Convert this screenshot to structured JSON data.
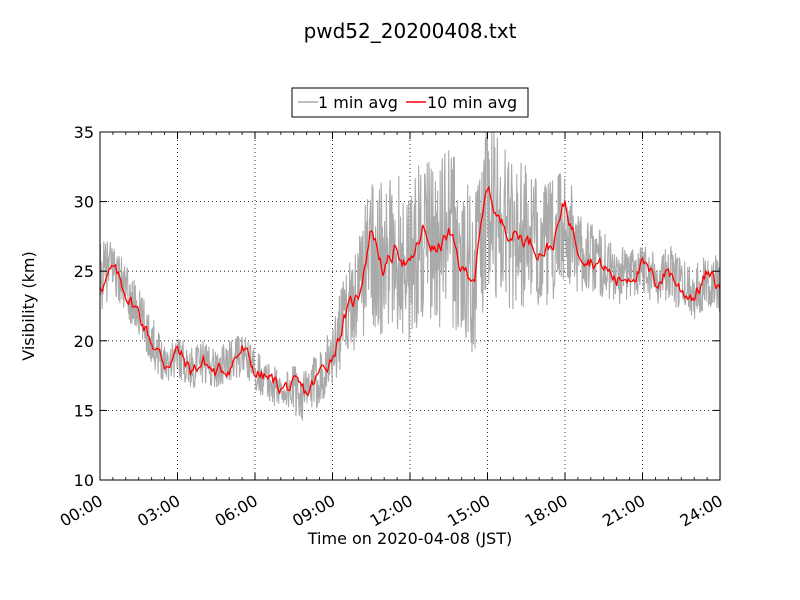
{
  "chart_data": {
    "type": "line",
    "title": "pwd52_20200408.txt",
    "xlabel": "Time on 2020-04-08 (JST)",
    "ylabel": "Visibility (km)",
    "xlim_hours": [
      0,
      24
    ],
    "ylim": [
      10,
      35
    ],
    "x_ticks": [
      "00:00",
      "03:00",
      "06:00",
      "09:00",
      "12:00",
      "15:00",
      "18:00",
      "21:00",
      "24:00"
    ],
    "y_ticks": [
      "10",
      "15",
      "20",
      "25",
      "30",
      "35"
    ],
    "grid": true,
    "legend_position": "top-center",
    "series": [
      {
        "name": "1 min avg",
        "color": "#aaaaaa",
        "x_hours": [
          0,
          0.5,
          1,
          1.5,
          2,
          2.5,
          3,
          3.5,
          4,
          4.5,
          5,
          5.5,
          6,
          6.5,
          7,
          7.5,
          8,
          8.5,
          9,
          9.5,
          10,
          10.5,
          11,
          11.5,
          12,
          12.5,
          13,
          13.5,
          14,
          14.5,
          15,
          15.5,
          16,
          16.5,
          17,
          17.5,
          18,
          18.5,
          19,
          19.5,
          20,
          20.5,
          21,
          21.5,
          22,
          22.5,
          23,
          23.5,
          24
        ],
        "values": [
          24.5,
          25.5,
          23.5,
          22.0,
          20.0,
          18.5,
          19.0,
          18.0,
          18.5,
          18.0,
          18.5,
          19.0,
          18.0,
          17.0,
          16.5,
          16.5,
          16.0,
          17.5,
          19.0,
          22.0,
          23.5,
          27.0,
          25.0,
          26.5,
          25.5,
          27.5,
          26.5,
          28.0,
          25.5,
          25.0,
          29.5,
          29.0,
          28.0,
          27.5,
          27.0,
          27.0,
          28.5,
          26.5,
          26.0,
          25.5,
          24.5,
          25.0,
          25.5,
          24.5,
          25.0,
          24.0,
          23.5,
          24.5,
          24.0
        ],
        "noise_amplitude_km": [
          2.5,
          2.0,
          2.0,
          1.8,
          1.8,
          1.5,
          1.5,
          1.5,
          1.5,
          1.5,
          1.5,
          1.5,
          1.5,
          1.5,
          1.5,
          1.8,
          2.0,
          2.0,
          2.5,
          3.0,
          4.0,
          5.5,
          6.0,
          6.0,
          5.5,
          6.0,
          6.0,
          6.5,
          6.0,
          6.0,
          6.5,
          6.5,
          6.0,
          5.0,
          4.5,
          4.5,
          4.5,
          3.0,
          2.5,
          2.5,
          2.0,
          2.0,
          2.0,
          2.0,
          2.0,
          2.0,
          2.0,
          2.0,
          2.0
        ]
      },
      {
        "name": "10 min avg",
        "color": "#ff0000",
        "x_hours": [
          0,
          0.5,
          1,
          1.5,
          2,
          2.5,
          3,
          3.5,
          4,
          4.5,
          5,
          5.5,
          6,
          6.5,
          7,
          7.5,
          8,
          8.5,
          9,
          9.5,
          10,
          10.5,
          11,
          11.5,
          12,
          12.5,
          13,
          13.5,
          14,
          14.5,
          15,
          15.5,
          16,
          16.5,
          17,
          17.5,
          18,
          18.5,
          19,
          19.5,
          20,
          20.5,
          21,
          21.5,
          22,
          22.5,
          23,
          23.5,
          24
        ],
        "values": [
          24.0,
          25.0,
          23.5,
          22.0,
          20.0,
          18.3,
          19.3,
          17.8,
          18.5,
          17.6,
          18.2,
          19.4,
          17.8,
          17.2,
          16.7,
          16.6,
          16.1,
          17.6,
          19.0,
          21.8,
          23.2,
          28.2,
          25.0,
          26.7,
          25.2,
          27.8,
          26.4,
          27.7,
          25.0,
          24.8,
          31.0,
          28.4,
          27.8,
          27.3,
          26.6,
          26.8,
          29.8,
          26.8,
          26.0,
          25.3,
          24.3,
          24.8,
          25.4,
          24.1,
          25.2,
          23.6,
          23.3,
          24.8,
          23.6
        ]
      }
    ]
  }
}
